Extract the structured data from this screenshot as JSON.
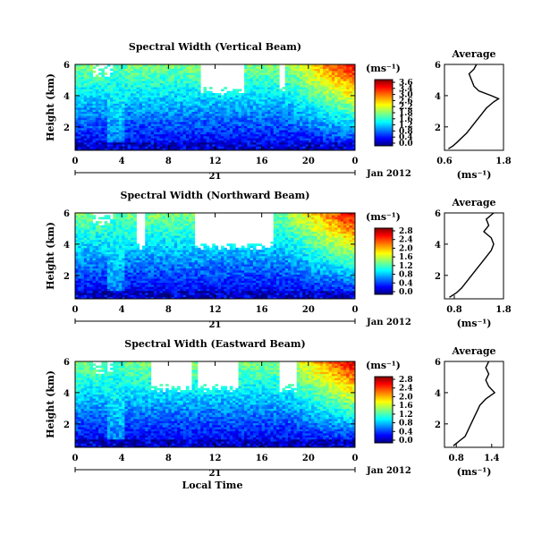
{
  "chart_data": [
    {
      "type": "heatmap",
      "title": "Spectral Width (Vertical Beam)",
      "ylabel": "Height (km)",
      "y_ticks": [
        "6",
        "4",
        "2"
      ],
      "ylim": [
        0.5,
        6
      ],
      "x_ticks": [
        "0",
        "4",
        "8",
        "12",
        "16",
        "20",
        "0"
      ],
      "xlim": [
        0,
        24
      ],
      "date_day": "21",
      "date_month": "Jan 2012",
      "colorbar": {
        "unit": "(ms⁻¹)",
        "labels": [
          "3.6",
          "3.4",
          "3.0",
          "2.6",
          "2.2",
          "1.8",
          "1.6",
          "1.2",
          "0.8",
          "0.4",
          "0.0"
        ],
        "range": [
          0,
          3.6
        ]
      },
      "gaps_x": [
        [
          10.8,
          14.5
        ],
        [
          17.5,
          17.9
        ]
      ],
      "gap_top": 4.0,
      "average": {
        "title": "Average",
        "xlabel": "(ms⁻¹)",
        "x_ticks": [
          "0.6",
          "1.8"
        ],
        "xlim": [
          0.6,
          1.8
        ],
        "y_ticks": [
          "6",
          "4",
          "2"
        ],
        "ylim": [
          0.5,
          6
        ],
        "heights": [
          0.6,
          0.8,
          1.0,
          1.3,
          1.6,
          2.0,
          2.4,
          2.8,
          3.2,
          3.6,
          3.8,
          4.0,
          4.3,
          4.6,
          5.0,
          5.4,
          5.7,
          6.0
        ],
        "values": [
          0.68,
          0.78,
          0.85,
          0.95,
          1.05,
          1.15,
          1.25,
          1.35,
          1.45,
          1.6,
          1.7,
          1.55,
          1.3,
          1.2,
          1.15,
          1.1,
          1.2,
          1.25
        ]
      }
    },
    {
      "type": "heatmap",
      "title": "Spectral Width (Northward Beam)",
      "ylabel": "Height (km)",
      "y_ticks": [
        "6",
        "4",
        "2"
      ],
      "ylim": [
        0.5,
        6
      ],
      "x_ticks": [
        "0",
        "4",
        "8",
        "12",
        "16",
        "20",
        "0"
      ],
      "xlim": [
        0,
        24
      ],
      "date_day": "21",
      "date_month": "Jan 2012",
      "colorbar": {
        "unit": "(ms⁻¹)",
        "labels": [
          "2.8",
          "2.4",
          "2.0",
          "1.6",
          "1.2",
          "0.8",
          "0.4",
          "0.0"
        ],
        "range": [
          0,
          2.8
        ]
      },
      "gaps_x": [
        [
          5.2,
          6.0
        ],
        [
          10.2,
          17.0
        ]
      ],
      "gap_top": 3.6,
      "average": {
        "title": "Average",
        "xlabel": "(ms⁻¹)",
        "x_ticks": [
          "0.8",
          "1.8"
        ],
        "xlim": [
          0.6,
          1.8
        ],
        "y_ticks": [
          "6",
          "4",
          "2"
        ],
        "ylim": [
          0.5,
          6
        ],
        "heights": [
          0.6,
          0.9,
          1.2,
          1.6,
          2.0,
          2.4,
          2.8,
          3.2,
          3.6,
          4.0,
          4.4,
          4.8,
          5.2,
          5.6,
          6.0
        ],
        "values": [
          0.7,
          0.85,
          0.95,
          1.05,
          1.15,
          1.25,
          1.35,
          1.45,
          1.55,
          1.6,
          1.55,
          1.4,
          1.5,
          1.45,
          1.6
        ]
      }
    },
    {
      "type": "heatmap",
      "title": "Spectral Width (Eastward Beam)",
      "ylabel": "Height (km)",
      "y_ticks": [
        "6",
        "4",
        "2"
      ],
      "ylim": [
        0.5,
        6
      ],
      "x_ticks": [
        "0",
        "4",
        "8",
        "12",
        "16",
        "20",
        "0"
      ],
      "xlim": [
        0,
        24
      ],
      "date_day": "21",
      "date_month": "Jan 2012",
      "xlabel": "Local Time",
      "colorbar": {
        "unit": "(ms⁻¹)",
        "labels": [
          "2.8",
          "2.4",
          "2.0",
          "1.6",
          "1.2",
          "0.8",
          "0.4",
          "0.0"
        ],
        "range": [
          0,
          2.8
        ]
      },
      "gaps_x": [
        [
          6.5,
          10.0
        ],
        [
          10.5,
          14.0
        ],
        [
          17.5,
          19.0
        ]
      ],
      "gap_top": 4.0,
      "average": {
        "title": "Average",
        "xlabel": "(ms⁻¹)",
        "x_ticks": [
          "0.8",
          "1.4"
        ],
        "xlim": [
          0.6,
          1.6
        ],
        "y_ticks": [
          "6",
          "4",
          "2"
        ],
        "ylim": [
          0.5,
          6
        ],
        "heights": [
          0.6,
          0.9,
          1.2,
          1.6,
          2.0,
          2.4,
          2.8,
          3.2,
          3.6,
          4.0,
          4.4,
          4.8,
          5.2,
          5.6,
          6.0
        ],
        "values": [
          0.75,
          0.85,
          0.95,
          1.0,
          1.05,
          1.1,
          1.15,
          1.2,
          1.3,
          1.45,
          1.35,
          1.3,
          1.35,
          1.3,
          1.35
        ]
      }
    }
  ]
}
